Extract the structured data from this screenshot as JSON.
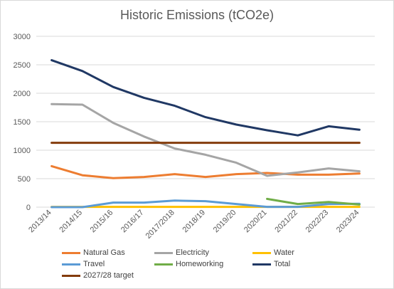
{
  "chart_data": {
    "type": "line",
    "title": "Historic Emissions (tCO2e)",
    "xlabel": "",
    "ylabel": "",
    "ylim": [
      0,
      3000
    ],
    "yticks": [
      0,
      500,
      1000,
      1500,
      2000,
      2500,
      3000
    ],
    "grid": "horizontal",
    "legend_position": "bottom",
    "categories": [
      "2013/14",
      "2014/15",
      "2015/16",
      "2016/17",
      "2017/2018",
      "2018/19",
      "2019/20",
      "2020/21",
      "2021/22",
      "2022/23",
      "2023/24"
    ],
    "series": [
      {
        "name": "Natural Gas",
        "color": "#ED7D31",
        "values": [
          720,
          560,
          510,
          530,
          580,
          530,
          580,
          600,
          570,
          570,
          590
        ]
      },
      {
        "name": "Electricity",
        "color": "#A5A5A5",
        "values": [
          1810,
          1800,
          1480,
          1240,
          1030,
          920,
          780,
          550,
          610,
          680,
          630
        ]
      },
      {
        "name": "Water",
        "color": "#FFC000",
        "values": [
          5,
          5,
          5,
          5,
          5,
          5,
          5,
          5,
          5,
          5,
          5
        ]
      },
      {
        "name": "Travel",
        "color": "#5B9BD5",
        "values": [
          0,
          0,
          80,
          80,
          115,
          105,
          55,
          5,
          5,
          55,
          60
        ]
      },
      {
        "name": "Homeworking",
        "color": "#70AD47",
        "values": [
          null,
          null,
          null,
          null,
          null,
          null,
          null,
          145,
          55,
          90,
          45
        ]
      },
      {
        "name": "Total",
        "color": "#203864",
        "values": [
          2580,
          2390,
          2110,
          1920,
          1780,
          1580,
          1450,
          1350,
          1260,
          1420,
          1360
        ]
      },
      {
        "name": "2027/28 target",
        "color": "#843C0C",
        "values": [
          1130,
          1130,
          1130,
          1130,
          1130,
          1130,
          1130,
          1130,
          1130,
          1130,
          1130
        ]
      }
    ]
  }
}
